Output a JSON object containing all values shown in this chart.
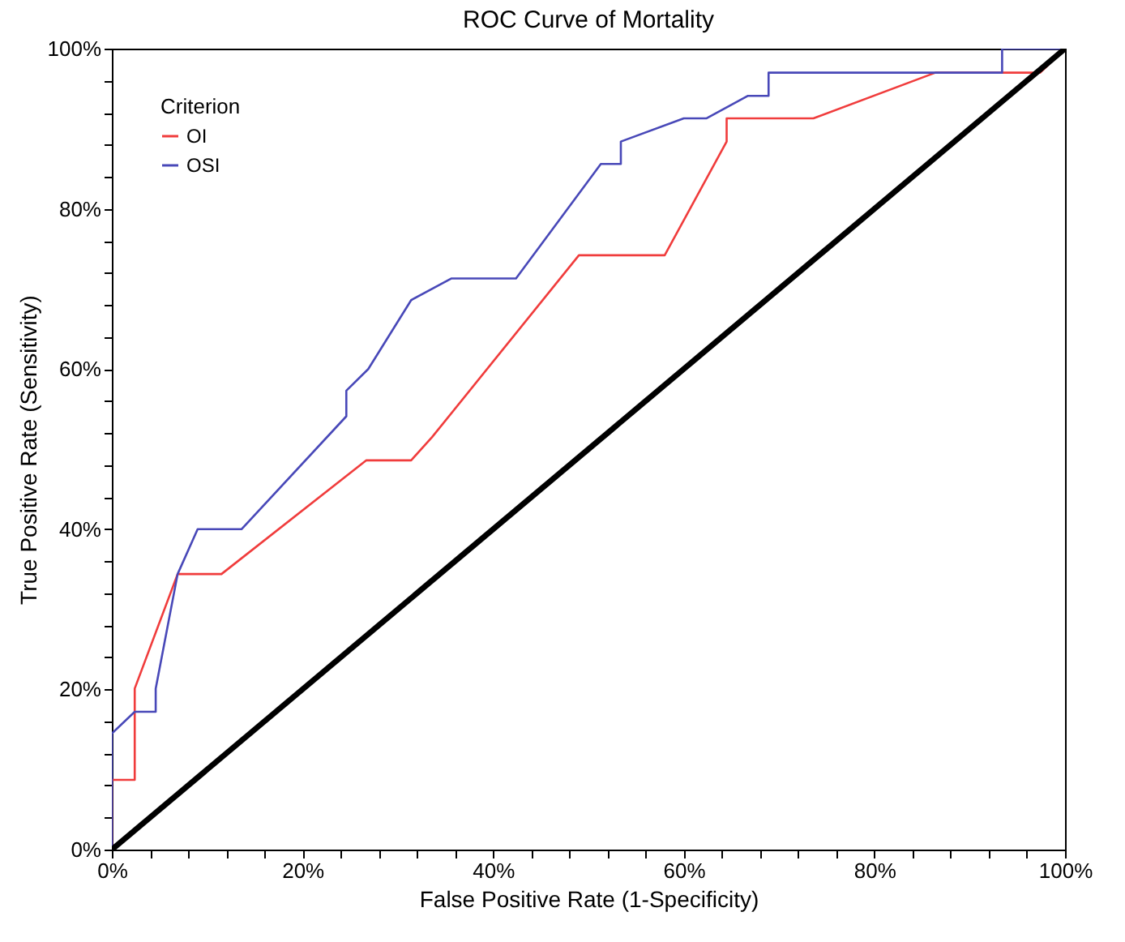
{
  "chart_data": {
    "type": "line",
    "title": "ROC Curve of Mortality",
    "xlabel": "False Positive Rate (1-Specificity)",
    "ylabel": "True Positive Rate (Sensitivity)",
    "legend_title": "Criterion",
    "series": [
      {
        "name": "OI",
        "color": "#f03c3c",
        "x": [
          0,
          0,
          2.4,
          2.4,
          6.9,
          11.5,
          26.7,
          31.4,
          33.6,
          49.0,
          58.0,
          64.5,
          64.5,
          73.6,
          86.4,
          97.4,
          100
        ],
        "values": [
          0,
          8.7,
          8.7,
          20.1,
          34.4,
          34.4,
          48.6,
          48.6,
          51.5,
          74.2,
          74.2,
          88.4,
          91.3,
          91.3,
          97.0,
          97.0,
          100
        ]
      },
      {
        "name": "OSI",
        "color": "#4848b8",
        "x": [
          0,
          0,
          2.4,
          4.6,
          4.6,
          6.9,
          9.0,
          13.6,
          24.6,
          24.6,
          26.9,
          31.4,
          35.6,
          42.4,
          51.3,
          53.4,
          53.4,
          60.0,
          62.4,
          66.7,
          68.9,
          68.9,
          93.4,
          93.4,
          100
        ],
        "values": [
          0,
          14.5,
          17.2,
          17.2,
          20.1,
          34.4,
          40.0,
          40.0,
          54.1,
          57.3,
          60.0,
          68.6,
          71.3,
          71.3,
          85.6,
          85.6,
          88.4,
          91.3,
          91.3,
          94.1,
          94.1,
          97.0,
          97.0,
          100,
          100
        ]
      },
      {
        "color": "#000000",
        "x": [
          0,
          100
        ],
        "values": [
          0,
          100
        ]
      }
    ],
    "xlim": [
      0,
      100
    ],
    "ylim": [
      0,
      100
    ],
    "xticks": [
      {
        "value": 0,
        "label": "0%"
      },
      {
        "value": 4,
        "label": null
      },
      {
        "value": 8,
        "label": null
      },
      {
        "value": 12,
        "label": null
      },
      {
        "value": 16,
        "label": null
      },
      {
        "value": 20,
        "label": "20%"
      },
      {
        "value": 24,
        "label": null
      },
      {
        "value": 28,
        "label": null
      },
      {
        "value": 32,
        "label": null
      },
      {
        "value": 36,
        "label": null
      },
      {
        "value": 40,
        "label": "40%"
      },
      {
        "value": 44,
        "label": null
      },
      {
        "value": 48,
        "label": null
      },
      {
        "value": 52,
        "label": null
      },
      {
        "value": 56,
        "label": null
      },
      {
        "value": 60,
        "label": "60%"
      },
      {
        "value": 64,
        "label": null
      },
      {
        "value": 68,
        "label": null
      },
      {
        "value": 72,
        "label": null
      },
      {
        "value": 76,
        "label": null
      },
      {
        "value": 80,
        "label": "80%"
      },
      {
        "value": 84,
        "label": null
      },
      {
        "value": 88,
        "label": null
      },
      {
        "value": 92,
        "label": null
      },
      {
        "value": 96,
        "label": null
      },
      {
        "value": 100,
        "label": "100%"
      }
    ],
    "yticks": [
      {
        "value": 0,
        "label": "0%"
      },
      {
        "value": 4,
        "label": null
      },
      {
        "value": 8,
        "label": null
      },
      {
        "value": 12,
        "label": null
      },
      {
        "value": 16,
        "label": null
      },
      {
        "value": 20,
        "label": "20%"
      },
      {
        "value": 24,
        "label": null
      },
      {
        "value": 28,
        "label": null
      },
      {
        "value": 32,
        "label": null
      },
      {
        "value": 36,
        "label": null
      },
      {
        "value": 40,
        "label": "40%"
      },
      {
        "value": 44,
        "label": null
      },
      {
        "value": 48,
        "label": null
      },
      {
        "value": 52,
        "label": null
      },
      {
        "value": 56,
        "label": null
      },
      {
        "value": 60,
        "label": "60%"
      },
      {
        "value": 64,
        "label": null
      },
      {
        "value": 68,
        "label": null
      },
      {
        "value": 72,
        "label": null
      },
      {
        "value": 76,
        "label": null
      },
      {
        "value": 80,
        "label": "80%"
      },
      {
        "value": 84,
        "label": null
      },
      {
        "value": 88,
        "label": null
      },
      {
        "value": 92,
        "label": null
      },
      {
        "value": 96,
        "label": null
      },
      {
        "value": 100,
        "label": "100%"
      }
    ],
    "legend": "top left",
    "marker": "none",
    "line_style": "solid",
    "grid": false
  }
}
